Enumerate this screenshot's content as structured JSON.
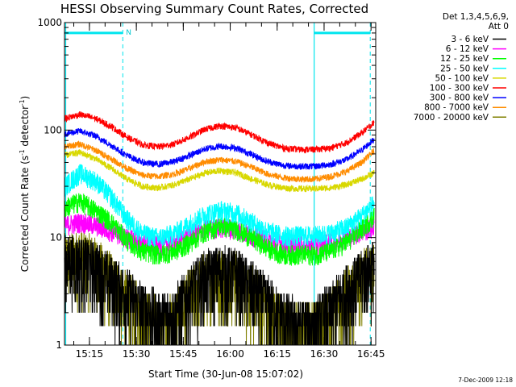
{
  "chart_data": {
    "type": "line",
    "title": "HESSI Observing Summary Count Rates, Corrected",
    "xlabel": "Start Time (30-Jun-08 15:07:02)",
    "ylabel": "Corrected Count Rate (s-1 detector-1)",
    "ylabel_parts": [
      "Corrected Count Rate (s",
      "-1",
      " detector",
      "-1",
      ")"
    ],
    "yscale": "log",
    "ylim": [
      1,
      1000
    ],
    "xlim": [
      "15:07:02",
      "16:46:30"
    ],
    "x_ticks": [
      "15:15",
      "15:30",
      "15:45",
      "16:00",
      "16:15",
      "16:30",
      "16:45"
    ],
    "y_ticks": [
      "1",
      "10",
      "100",
      "1000"
    ],
    "legend_header": [
      "Det 1,3,4,5,6,9,",
      "Att 0"
    ],
    "legend_placement": "right",
    "series": [
      {
        "name": "3 - 6 keV",
        "color": "#000000",
        "points": [
          [
            "15:07",
            6.3
          ],
          [
            "15:12",
            6.0
          ],
          [
            "15:17",
            5.5
          ],
          [
            "15:22",
            4.0
          ],
          [
            "15:27",
            3.0
          ],
          [
            "15:32",
            2.3
          ],
          [
            "15:37",
            1.8
          ],
          [
            "15:42",
            2.0
          ],
          [
            "15:47",
            3.2
          ],
          [
            "15:52",
            4.5
          ],
          [
            "15:57",
            5.0
          ],
          [
            "16:02",
            4.7
          ],
          [
            "16:07",
            3.5
          ],
          [
            "16:12",
            2.6
          ],
          [
            "16:17",
            1.8
          ],
          [
            "16:22",
            1.6
          ],
          [
            "16:27",
            1.6
          ],
          [
            "16:32",
            2.2
          ],
          [
            "16:37",
            3.3
          ],
          [
            "16:42",
            4.6
          ],
          [
            "16:46",
            5.8
          ]
        ]
      },
      {
        "name": "6 - 12 keV",
        "color": "#ff00ff",
        "points": [
          [
            "15:07",
            13
          ],
          [
            "15:12",
            14
          ],
          [
            "15:17",
            13
          ],
          [
            "15:22",
            11.5
          ],
          [
            "15:27",
            10
          ],
          [
            "15:32",
            9
          ],
          [
            "15:37",
            8.5
          ],
          [
            "15:42",
            9
          ],
          [
            "15:47",
            10.5
          ],
          [
            "15:52",
            12
          ],
          [
            "15:57",
            12.5
          ],
          [
            "16:02",
            12
          ],
          [
            "16:07",
            10.5
          ],
          [
            "16:12",
            9.5
          ],
          [
            "16:17",
            8.8
          ],
          [
            "16:22",
            8.5
          ],
          [
            "16:27",
            8.5
          ],
          [
            "16:32",
            9
          ],
          [
            "16:37",
            10
          ],
          [
            "16:42",
            11.5
          ],
          [
            "16:46",
            12.5
          ]
        ]
      },
      {
        "name": "12 - 25 keV",
        "color": "#00ff00",
        "points": [
          [
            "15:07",
            19
          ],
          [
            "15:12",
            22
          ],
          [
            "15:17",
            18
          ],
          [
            "15:22",
            14
          ],
          [
            "15:27",
            9.5
          ],
          [
            "15:32",
            7.5
          ],
          [
            "15:37",
            7
          ],
          [
            "15:42",
            7.5
          ],
          [
            "15:47",
            9
          ],
          [
            "15:52",
            11.5
          ],
          [
            "15:57",
            13
          ],
          [
            "16:02",
            12
          ],
          [
            "16:07",
            10
          ],
          [
            "16:12",
            8
          ],
          [
            "16:17",
            7
          ],
          [
            "16:22",
            7
          ],
          [
            "16:27",
            7
          ],
          [
            "16:32",
            7.5
          ],
          [
            "16:37",
            9
          ],
          [
            "16:42",
            12
          ],
          [
            "16:46",
            16
          ]
        ]
      },
      {
        "name": "25 - 50 keV",
        "color": "#00ffff",
        "points": [
          [
            "15:07",
            30
          ],
          [
            "15:12",
            40
          ],
          [
            "15:17",
            34
          ],
          [
            "15:22",
            24
          ],
          [
            "15:27",
            15
          ],
          [
            "15:32",
            11
          ],
          [
            "15:37",
            10
          ],
          [
            "15:42",
            11
          ],
          [
            "15:47",
            13.5
          ],
          [
            "15:52",
            16.5
          ],
          [
            "15:57",
            18
          ],
          [
            "16:02",
            17
          ],
          [
            "16:07",
            14
          ],
          [
            "16:12",
            11.5
          ],
          [
            "16:17",
            10.5
          ],
          [
            "16:22",
            10.5
          ],
          [
            "16:27",
            10.5
          ],
          [
            "16:32",
            11
          ],
          [
            "16:37",
            12.5
          ],
          [
            "16:42",
            16
          ],
          [
            "16:46",
            21
          ]
        ]
      },
      {
        "name": "50 - 100 keV",
        "color": "#d8d800",
        "points": [
          [
            "15:07",
            58
          ],
          [
            "15:12",
            62
          ],
          [
            "15:17",
            54
          ],
          [
            "15:22",
            44
          ],
          [
            "15:27",
            35
          ],
          [
            "15:32",
            30
          ],
          [
            "15:37",
            29
          ],
          [
            "15:42",
            31
          ],
          [
            "15:47",
            35
          ],
          [
            "15:52",
            40
          ],
          [
            "15:57",
            42
          ],
          [
            "16:02",
            40
          ],
          [
            "16:07",
            35
          ],
          [
            "16:12",
            31
          ],
          [
            "16:17",
            29
          ],
          [
            "16:22",
            28.5
          ],
          [
            "16:27",
            28.5
          ],
          [
            "16:32",
            29
          ],
          [
            "16:37",
            31
          ],
          [
            "16:42",
            35
          ],
          [
            "16:46",
            40
          ]
        ]
      },
      {
        "name": "100 - 300 keV",
        "color": "#ff0000",
        "points": [
          [
            "15:07",
            128
          ],
          [
            "15:12",
            140
          ],
          [
            "15:17",
            128
          ],
          [
            "15:22",
            108
          ],
          [
            "15:27",
            86
          ],
          [
            "15:32",
            73
          ],
          [
            "15:37",
            70
          ],
          [
            "15:42",
            74
          ],
          [
            "15:47",
            86
          ],
          [
            "15:52",
            102
          ],
          [
            "15:57",
            110
          ],
          [
            "16:02",
            105
          ],
          [
            "16:07",
            90
          ],
          [
            "16:12",
            76
          ],
          [
            "16:17",
            68
          ],
          [
            "16:22",
            66
          ],
          [
            "16:27",
            66
          ],
          [
            "16:32",
            68
          ],
          [
            "16:37",
            76
          ],
          [
            "16:42",
            94
          ],
          [
            "16:46",
            118
          ]
        ]
      },
      {
        "name": "300 - 800 keV",
        "color": "#0000ff",
        "points": [
          [
            "15:07",
            92
          ],
          [
            "15:12",
            98
          ],
          [
            "15:17",
            88
          ],
          [
            "15:22",
            72
          ],
          [
            "15:27",
            58
          ],
          [
            "15:32",
            50
          ],
          [
            "15:37",
            48
          ],
          [
            "15:42",
            51
          ],
          [
            "15:47",
            58
          ],
          [
            "15:52",
            67
          ],
          [
            "15:57",
            71
          ],
          [
            "16:02",
            68
          ],
          [
            "16:07",
            59
          ],
          [
            "16:12",
            51
          ],
          [
            "16:17",
            47
          ],
          [
            "16:22",
            46
          ],
          [
            "16:27",
            46
          ],
          [
            "16:32",
            48
          ],
          [
            "16:37",
            53
          ],
          [
            "16:42",
            65
          ],
          [
            "16:46",
            82
          ]
        ]
      },
      {
        "name": "800 - 7000 keV",
        "color": "#ff8c00",
        "points": [
          [
            "15:07",
            70
          ],
          [
            "15:12",
            74
          ],
          [
            "15:17",
            65
          ],
          [
            "15:22",
            54
          ],
          [
            "15:27",
            44
          ],
          [
            "15:32",
            38
          ],
          [
            "15:37",
            37
          ],
          [
            "15:42",
            39
          ],
          [
            "15:47",
            44
          ],
          [
            "15:52",
            51
          ],
          [
            "15:57",
            53
          ],
          [
            "16:02",
            51
          ],
          [
            "16:07",
            45
          ],
          [
            "16:12",
            39
          ],
          [
            "16:17",
            36
          ],
          [
            "16:22",
            35
          ],
          [
            "16:27",
            35
          ],
          [
            "16:32",
            37
          ],
          [
            "16:37",
            41
          ],
          [
            "16:42",
            50
          ],
          [
            "16:46",
            64
          ]
        ]
      },
      {
        "name": "7000 - 20000 keV",
        "color": "#808000",
        "points": [
          [
            "15:07",
            6.5
          ],
          [
            "15:12",
            7.0
          ],
          [
            "15:17",
            6.0
          ],
          [
            "15:22",
            4.2
          ],
          [
            "15:27",
            2.8
          ],
          [
            "15:32",
            2.0
          ],
          [
            "15:37",
            1.6
          ],
          [
            "15:42",
            1.8
          ],
          [
            "15:47",
            3.0
          ],
          [
            "15:52",
            4.3
          ],
          [
            "15:57",
            4.8
          ],
          [
            "16:02",
            4.5
          ],
          [
            "16:07",
            3.3
          ],
          [
            "16:12",
            2.3
          ],
          [
            "16:17",
            1.6
          ],
          [
            "16:22",
            1.4
          ],
          [
            "16:27",
            1.5
          ],
          [
            "16:32",
            2.0
          ],
          [
            "16:37",
            3.0
          ],
          [
            "16:42",
            4.5
          ],
          [
            "16:46",
            5.5
          ]
        ]
      }
    ],
    "annotations": {
      "night_intervals": [
        [
          "15:07:02",
          "15:25:40"
        ],
        [
          "16:26:50",
          "16:44:45"
        ]
      ],
      "night_level": 800,
      "saa_marker_label": "N"
    },
    "grid": false
  },
  "footer": {
    "timestamp": "7-Dec-2009 12:18"
  }
}
